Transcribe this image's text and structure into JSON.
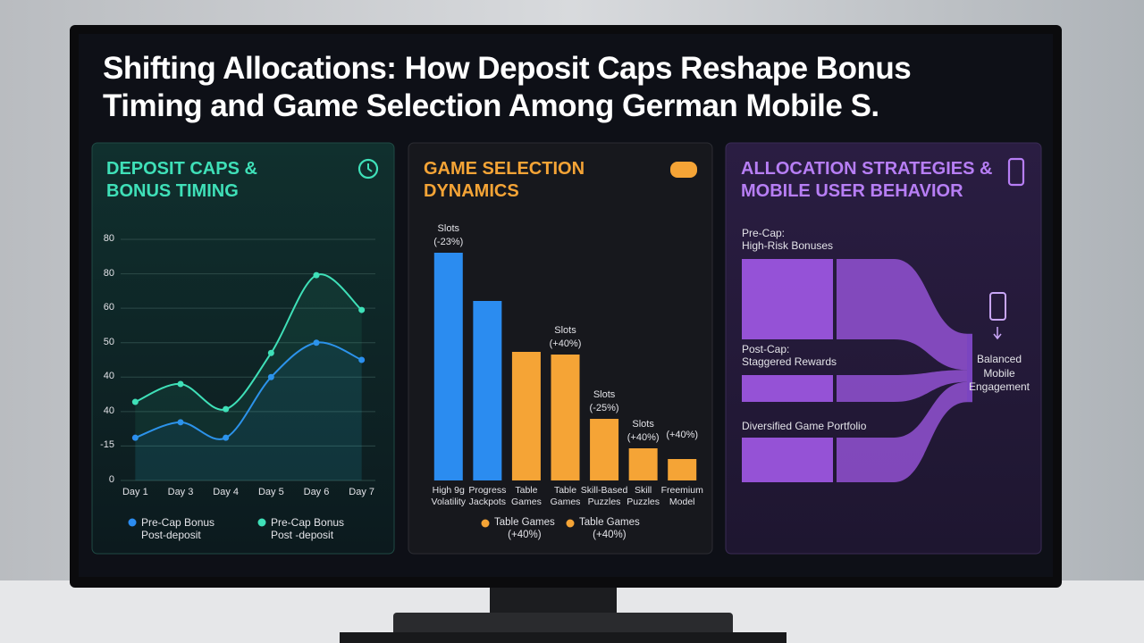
{
  "title": "Shifting Allocations: How Deposit Caps Reshape Bonus\nTiming and Game Selection Among German Mobile S.",
  "chart_data": [
    {
      "type": "line",
      "title": "DEPOSIT CAPS &\nBONUS TIMING",
      "categories": [
        "Day 1",
        "Day 3",
        "Day 4",
        "Day 5",
        "Day 6",
        "Day 7"
      ],
      "series": [
        {
          "name": "Pre-Cap Bonus\nPost-deposit",
          "color": "#2b8cf0",
          "values": [
            12.4,
            16.9,
            12.4,
            30,
            40,
            35
          ]
        },
        {
          "name": "Pre-Cap Bonus\nPost -deposit",
          "color": "#3fe0b8",
          "values": [
            22.8,
            28,
            20.7,
            37,
            59.6,
            49.5
          ]
        }
      ],
      "ylim": [
        0,
        70
      ],
      "yticks": [
        0,
        {
          "value": 10,
          "label": "-15"
        },
        {
          "value": 20,
          "label": "40"
        },
        {
          "value": 30,
          "label": "40"
        },
        {
          "value": 40,
          "label": "50"
        },
        {
          "value": 50,
          "label": "60"
        },
        {
          "value": 60,
          "label": "80"
        },
        {
          "value": 70,
          "label": "80"
        }
      ],
      "grid": true
    },
    {
      "type": "bar",
      "title": "GAME SELECTION\nDYNAMICS",
      "categories": [
        "High 9g\nVolatility",
        "Progress\nJackpots",
        "Table\nGames",
        "Table\nGames",
        "Skill-Based\nPuzzles",
        "Skill\nPuzzles",
        "Freemium\nModel"
      ],
      "values": [
        85,
        67,
        48,
        47,
        23,
        12,
        8
      ],
      "colors": [
        "#2b8cf0",
        "#2b8cf0",
        "#f5a436",
        "#f5a436",
        "#f5a436",
        "#f5a436",
        "#f5a436"
      ],
      "annotations": [
        "Slots\n(-23%)",
        null,
        null,
        "Slots\n(+40%)",
        "Slots\n(-25%)",
        "Slots\n(+40%)",
        "(+40%)"
      ],
      "ylim": [
        0,
        90
      ],
      "legend": [
        {
          "name": "Table Games\n(+40%)",
          "color": "#f5a436"
        },
        {
          "name": "Table Games\n(+40%)",
          "color": "#f5a436"
        }
      ]
    },
    {
      "type": "sankey",
      "title": "ALLOCATION STRATEGIES &\nMOBILE USER BEHAVIOR",
      "nodes": [
        {
          "label": "Pre-Cap:\nHigh-Risk Bonuses",
          "value": 90
        },
        {
          "label": "Post-Cap:\nStaggered Rewards",
          "value": 30
        },
        {
          "label": "Diversified Game Portfolio",
          "value": 50
        }
      ],
      "target": "Balanced\nMobile\nEngagement",
      "color": "#a259e8"
    }
  ]
}
